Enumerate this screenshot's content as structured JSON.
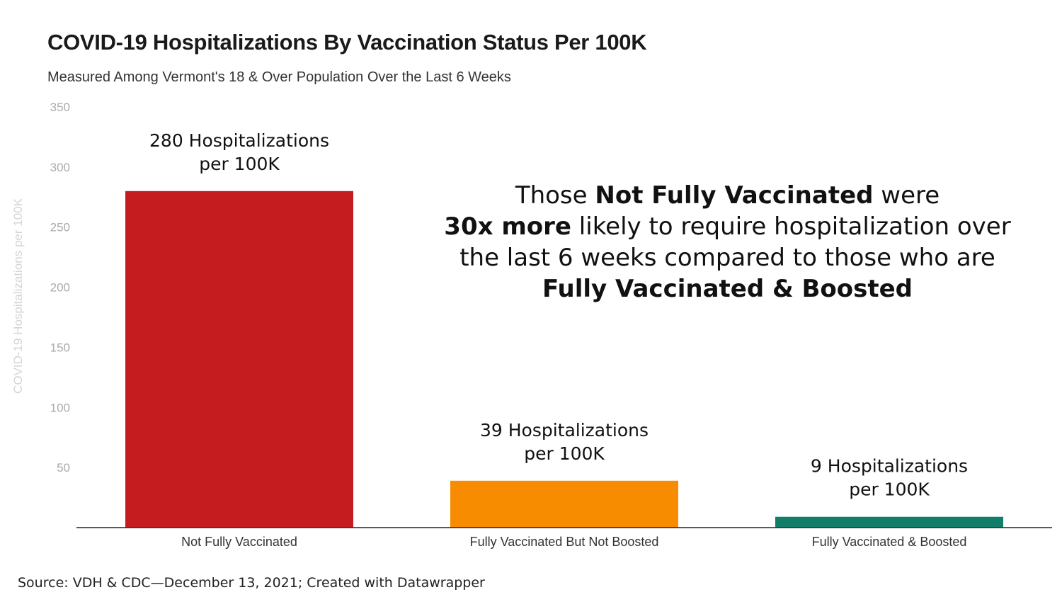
{
  "chart_data": {
    "type": "bar",
    "title": "COVID-19 Hospitalizations By Vaccination Status Per 100K",
    "subtitle": "Measured Among Vermont's 18 & Over Population Over the Last 6 Weeks",
    "ylabel": "COVID-19 Hospitalizations per 100K",
    "xlabel": "",
    "ylim": [
      0,
      350
    ],
    "yticks": [
      50,
      100,
      150,
      200,
      250,
      300,
      350
    ],
    "categories": [
      "Not Fully Vaccinated",
      "Fully Vaccinated But Not Boosted",
      "Fully Vaccinated & Boosted"
    ],
    "values": [
      280,
      39,
      9
    ],
    "colors": [
      "#c41c1f",
      "#f78c00",
      "#127e6a"
    ],
    "data_labels": [
      [
        "280 Hospitalizations",
        "per 100K"
      ],
      [
        "39 Hospitalizations",
        "per 100K"
      ],
      [
        "9 Hospitalizations",
        "per 100K"
      ]
    ],
    "grid": false
  },
  "callout": {
    "l1a": "Those ",
    "l1b": "Not Fully Vaccinated",
    "l1c": " were",
    "l2a": "30x more",
    "l2b": " likely to require hospitalization over",
    "l3": "the last 6 weeks compared to those who are",
    "l4": "Fully Vaccinated & Boosted"
  },
  "source": "Source: VDH & CDC—December 13, 2021; Created with Datawrapper"
}
